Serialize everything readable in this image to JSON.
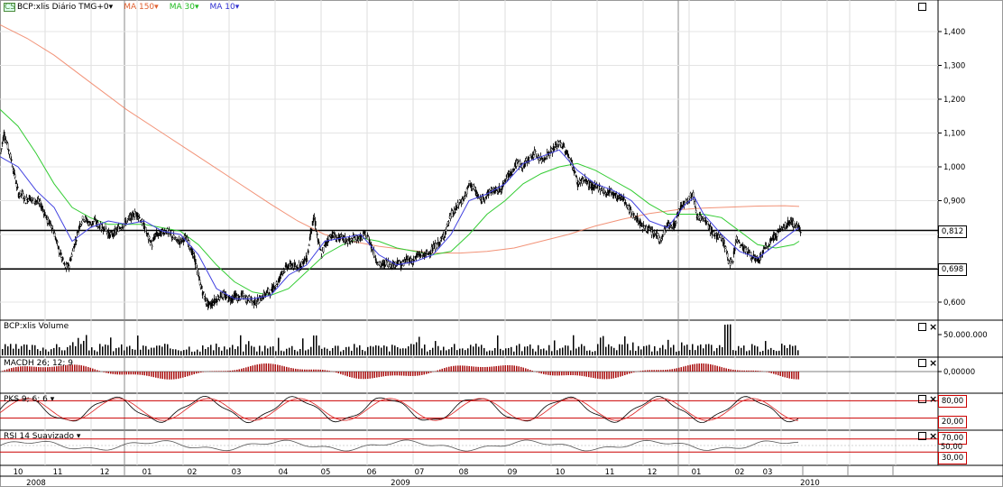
{
  "header": {
    "symbol_label": "BCP:xlis Diário TMG+0",
    "ma150_label": "MA 150",
    "ma30_label": "MA 30",
    "ma10_label": "MA 10",
    "colors": {
      "ma150": "#f08060",
      "ma30": "#33cc33",
      "ma10": "#4040e0",
      "candle": "#000000"
    }
  },
  "panels": {
    "volume_label": "BCP:xlis Volume",
    "macd_label": "MACDH 26; 12; 9",
    "pks_label": "PKS 9; 6; 6",
    "rsi_label": "RSI 14 Suavizado"
  },
  "markers": {
    "upper": "0,812",
    "lower": "0,698",
    "pks_hi": "80,00",
    "pks_lo": "20,00",
    "rsi_hi": "70,00",
    "rsi_mid": "50,00",
    "rsi_lo": "30,00"
  },
  "chart_data": {
    "type": "line",
    "title": "BCP:xlis Diário TMG+0",
    "series": [
      {
        "name": "MA 150",
        "values": []
      },
      {
        "name": "MA 30",
        "values": []
      },
      {
        "name": "MA 10",
        "values": []
      }
    ],
    "price_axis": {
      "ticks": [
        "1,400",
        "1,300",
        "1,200",
        "1,100",
        "1,000",
        "0,900",
        "0,600"
      ],
      "ylim": [
        0.55,
        1.48
      ]
    },
    "horizontal_lines": [
      0.812,
      0.698
    ],
    "volume_axis": {
      "ticks": [
        "50.000.000"
      ]
    },
    "macd_axis": {
      "ticks": [
        "0,00000"
      ]
    },
    "pks_levels": [
      80,
      20
    ],
    "rsi_levels": [
      70,
      50,
      30
    ],
    "x_months": [
      "10",
      "11",
      "12",
      "01",
      "02",
      "03",
      "04",
      "05",
      "06",
      "07",
      "08",
      "09",
      "10",
      "11",
      "12",
      "01",
      "02",
      "03"
    ],
    "x_years": [
      "2008",
      "2009",
      "2010"
    ],
    "price_path": [
      [
        0,
        1.04
      ],
      [
        4,
        1.1
      ],
      [
        8,
        1.06
      ],
      [
        12,
        1.02
      ],
      [
        16,
        0.97
      ],
      [
        20,
        0.92
      ],
      [
        24,
        0.92
      ],
      [
        28,
        0.9
      ],
      [
        32,
        0.91
      ],
      [
        36,
        0.9
      ],
      [
        40,
        0.9
      ],
      [
        44,
        0.89
      ],
      [
        48,
        0.87
      ],
      [
        52,
        0.84
      ],
      [
        56,
        0.83
      ],
      [
        60,
        0.8
      ],
      [
        64,
        0.76
      ],
      [
        68,
        0.73
      ],
      [
        72,
        0.7
      ],
      [
        76,
        0.71
      ],
      [
        80,
        0.75
      ],
      [
        84,
        0.79
      ],
      [
        88,
        0.83
      ],
      [
        92,
        0.85
      ],
      [
        96,
        0.84
      ],
      [
        100,
        0.83
      ],
      [
        104,
        0.84
      ],
      [
        108,
        0.83
      ],
      [
        112,
        0.82
      ],
      [
        116,
        0.82
      ],
      [
        120,
        0.8
      ],
      [
        124,
        0.8
      ],
      [
        128,
        0.81
      ],
      [
        132,
        0.82
      ],
      [
        136,
        0.83
      ],
      [
        140,
        0.84
      ],
      [
        144,
        0.85
      ],
      [
        148,
        0.86
      ],
      [
        152,
        0.86
      ],
      [
        156,
        0.84
      ],
      [
        160,
        0.82
      ],
      [
        164,
        0.79
      ],
      [
        168,
        0.77
      ],
      [
        172,
        0.8
      ],
      [
        176,
        0.8
      ],
      [
        180,
        0.81
      ],
      [
        184,
        0.81
      ],
      [
        188,
        0.8
      ],
      [
        192,
        0.79
      ],
      [
        196,
        0.78
      ],
      [
        200,
        0.78
      ],
      [
        204,
        0.79
      ],
      [
        208,
        0.78
      ],
      [
        212,
        0.75
      ],
      [
        216,
        0.72
      ],
      [
        220,
        0.67
      ],
      [
        224,
        0.63
      ],
      [
        228,
        0.6
      ],
      [
        232,
        0.59
      ],
      [
        236,
        0.6
      ],
      [
        240,
        0.61
      ],
      [
        244,
        0.62
      ],
      [
        248,
        0.62
      ],
      [
        252,
        0.61
      ],
      [
        256,
        0.61
      ],
      [
        260,
        0.62
      ],
      [
        264,
        0.61
      ],
      [
        268,
        0.62
      ],
      [
        272,
        0.61
      ],
      [
        276,
        0.61
      ],
      [
        280,
        0.6
      ],
      [
        284,
        0.6
      ],
      [
        288,
        0.61
      ],
      [
        292,
        0.62
      ],
      [
        296,
        0.63
      ],
      [
        300,
        0.63
      ],
      [
        304,
        0.65
      ],
      [
        308,
        0.66
      ],
      [
        312,
        0.69
      ],
      [
        316,
        0.7
      ],
      [
        320,
        0.71
      ],
      [
        324,
        0.71
      ],
      [
        328,
        0.7
      ],
      [
        332,
        0.71
      ],
      [
        336,
        0.72
      ],
      [
        340,
        0.73
      ],
      [
        344,
        0.81
      ],
      [
        348,
        0.85
      ],
      [
        352,
        0.78
      ],
      [
        356,
        0.74
      ],
      [
        360,
        0.77
      ],
      [
        364,
        0.79
      ],
      [
        368,
        0.8
      ],
      [
        372,
        0.79
      ],
      [
        376,
        0.79
      ],
      [
        380,
        0.79
      ],
      [
        384,
        0.78
      ],
      [
        388,
        0.78
      ],
      [
        392,
        0.79
      ],
      [
        396,
        0.79
      ],
      [
        400,
        0.79
      ],
      [
        404,
        0.8
      ],
      [
        408,
        0.79
      ],
      [
        412,
        0.76
      ],
      [
        416,
        0.73
      ],
      [
        420,
        0.71
      ],
      [
        424,
        0.71
      ],
      [
        428,
        0.72
      ],
      [
        432,
        0.71
      ],
      [
        436,
        0.71
      ],
      [
        440,
        0.72
      ],
      [
        444,
        0.71
      ],
      [
        448,
        0.72
      ],
      [
        452,
        0.73
      ],
      [
        456,
        0.72
      ],
      [
        460,
        0.73
      ],
      [
        464,
        0.74
      ],
      [
        468,
        0.74
      ],
      [
        472,
        0.74
      ],
      [
        476,
        0.75
      ],
      [
        480,
        0.76
      ],
      [
        484,
        0.77
      ],
      [
        488,
        0.78
      ],
      [
        492,
        0.8
      ],
      [
        496,
        0.83
      ],
      [
        500,
        0.86
      ],
      [
        504,
        0.87
      ],
      [
        508,
        0.89
      ],
      [
        512,
        0.9
      ],
      [
        516,
        0.92
      ],
      [
        520,
        0.95
      ],
      [
        524,
        0.94
      ],
      [
        528,
        0.92
      ],
      [
        532,
        0.9
      ],
      [
        536,
        0.91
      ],
      [
        540,
        0.92
      ],
      [
        544,
        0.93
      ],
      [
        548,
        0.93
      ],
      [
        552,
        0.93
      ],
      [
        556,
        0.94
      ],
      [
        560,
        0.96
      ],
      [
        564,
        0.98
      ],
      [
        568,
        0.99
      ],
      [
        572,
        1.01
      ],
      [
        576,
        1.01
      ],
      [
        580,
        1.0
      ],
      [
        584,
        1.02
      ],
      [
        588,
        1.03
      ],
      [
        592,
        1.04
      ],
      [
        596,
        1.03
      ],
      [
        600,
        1.02
      ],
      [
        604,
        1.03
      ],
      [
        608,
        1.04
      ],
      [
        612,
        1.05
      ],
      [
        616,
        1.06
      ],
      [
        620,
        1.07
      ],
      [
        624,
        1.06
      ],
      [
        628,
        1.04
      ],
      [
        632,
        1.02
      ],
      [
        636,
        0.99
      ],
      [
        640,
        0.95
      ],
      [
        644,
        0.96
      ],
      [
        648,
        0.96
      ],
      [
        652,
        0.95
      ],
      [
        656,
        0.94
      ],
      [
        660,
        0.94
      ],
      [
        664,
        0.94
      ],
      [
        668,
        0.93
      ],
      [
        672,
        0.92
      ],
      [
        676,
        0.93
      ],
      [
        680,
        0.92
      ],
      [
        684,
        0.91
      ],
      [
        688,
        0.91
      ],
      [
        692,
        0.9
      ],
      [
        696,
        0.88
      ],
      [
        700,
        0.86
      ],
      [
        704,
        0.85
      ],
      [
        708,
        0.84
      ],
      [
        712,
        0.82
      ],
      [
        716,
        0.82
      ],
      [
        720,
        0.81
      ],
      [
        724,
        0.8
      ],
      [
        728,
        0.8
      ],
      [
        732,
        0.78
      ],
      [
        736,
        0.81
      ],
      [
        740,
        0.83
      ],
      [
        744,
        0.82
      ],
      [
        748,
        0.83
      ],
      [
        752,
        0.87
      ],
      [
        756,
        0.89
      ],
      [
        760,
        0.9
      ],
      [
        764,
        0.91
      ],
      [
        768,
        0.92
      ],
      [
        772,
        0.86
      ],
      [
        776,
        0.85
      ],
      [
        780,
        0.84
      ],
      [
        784,
        0.83
      ],
      [
        788,
        0.81
      ],
      [
        792,
        0.8
      ],
      [
        796,
        0.79
      ],
      [
        800,
        0.79
      ],
      [
        804,
        0.76
      ],
      [
        808,
        0.71
      ],
      [
        812,
        0.73
      ],
      [
        816,
        0.79
      ],
      [
        820,
        0.77
      ],
      [
        824,
        0.76
      ],
      [
        828,
        0.75
      ],
      [
        832,
        0.74
      ],
      [
        836,
        0.73
      ],
      [
        840,
        0.72
      ],
      [
        844,
        0.74
      ],
      [
        848,
        0.76
      ],
      [
        852,
        0.77
      ],
      [
        856,
        0.79
      ],
      [
        860,
        0.8
      ],
      [
        864,
        0.81
      ],
      [
        868,
        0.82
      ],
      [
        872,
        0.83
      ],
      [
        876,
        0.84
      ],
      [
        880,
        0.83
      ],
      [
        884,
        0.82
      ],
      [
        886,
        0.81
      ]
    ],
    "ma150_path": [
      [
        0,
        1.42
      ],
      [
        30,
        1.38
      ],
      [
        60,
        1.33
      ],
      [
        100,
        1.25
      ],
      [
        140,
        1.17
      ],
      [
        180,
        1.1
      ],
      [
        220,
        1.03
      ],
      [
        260,
        0.96
      ],
      [
        300,
        0.89
      ],
      [
        330,
        0.84
      ],
      [
        360,
        0.8
      ],
      [
        390,
        0.78
      ],
      [
        420,
        0.765
      ],
      [
        450,
        0.755
      ],
      [
        480,
        0.745
      ],
      [
        510,
        0.745
      ],
      [
        540,
        0.75
      ],
      [
        570,
        0.76
      ],
      [
        600,
        0.78
      ],
      [
        630,
        0.8
      ],
      [
        660,
        0.825
      ],
      [
        690,
        0.845
      ],
      [
        720,
        0.862
      ],
      [
        750,
        0.873
      ],
      [
        780,
        0.878
      ],
      [
        810,
        0.881
      ],
      [
        840,
        0.884
      ],
      [
        870,
        0.885
      ],
      [
        886,
        0.883
      ]
    ],
    "ma30_path": [
      [
        0,
        1.17
      ],
      [
        20,
        1.12
      ],
      [
        40,
        1.04
      ],
      [
        60,
        0.95
      ],
      [
        80,
        0.88
      ],
      [
        100,
        0.85
      ],
      [
        120,
        0.83
      ],
      [
        140,
        0.83
      ],
      [
        160,
        0.83
      ],
      [
        180,
        0.82
      ],
      [
        200,
        0.81
      ],
      [
        220,
        0.77
      ],
      [
        240,
        0.71
      ],
      [
        260,
        0.66
      ],
      [
        280,
        0.63
      ],
      [
        300,
        0.62
      ],
      [
        320,
        0.64
      ],
      [
        340,
        0.69
      ],
      [
        360,
        0.74
      ],
      [
        380,
        0.77
      ],
      [
        400,
        0.79
      ],
      [
        420,
        0.78
      ],
      [
        440,
        0.76
      ],
      [
        460,
        0.75
      ],
      [
        480,
        0.74
      ],
      [
        500,
        0.75
      ],
      [
        520,
        0.8
      ],
      [
        540,
        0.86
      ],
      [
        560,
        0.9
      ],
      [
        580,
        0.95
      ],
      [
        600,
        0.98
      ],
      [
        620,
        1.0
      ],
      [
        640,
        1.01
      ],
      [
        660,
        0.99
      ],
      [
        680,
        0.96
      ],
      [
        700,
        0.93
      ],
      [
        720,
        0.89
      ],
      [
        740,
        0.86
      ],
      [
        760,
        0.86
      ],
      [
        780,
        0.86
      ],
      [
        800,
        0.85
      ],
      [
        820,
        0.81
      ],
      [
        840,
        0.77
      ],
      [
        860,
        0.76
      ],
      [
        880,
        0.77
      ],
      [
        886,
        0.78
      ]
    ],
    "ma10_path": [
      [
        0,
        1.03
      ],
      [
        20,
        1.0
      ],
      [
        40,
        0.93
      ],
      [
        60,
        0.88
      ],
      [
        80,
        0.78
      ],
      [
        100,
        0.82
      ],
      [
        120,
        0.84
      ],
      [
        140,
        0.83
      ],
      [
        160,
        0.84
      ],
      [
        180,
        0.81
      ],
      [
        200,
        0.8
      ],
      [
        220,
        0.74
      ],
      [
        240,
        0.64
      ],
      [
        260,
        0.61
      ],
      [
        280,
        0.61
      ],
      [
        300,
        0.62
      ],
      [
        320,
        0.68
      ],
      [
        340,
        0.71
      ],
      [
        360,
        0.78
      ],
      [
        380,
        0.79
      ],
      [
        400,
        0.8
      ],
      [
        420,
        0.74
      ],
      [
        440,
        0.71
      ],
      [
        460,
        0.72
      ],
      [
        480,
        0.74
      ],
      [
        500,
        0.8
      ],
      [
        520,
        0.9
      ],
      [
        540,
        0.92
      ],
      [
        560,
        0.95
      ],
      [
        580,
        1.01
      ],
      [
        600,
        1.03
      ],
      [
        620,
        1.05
      ],
      [
        640,
        0.99
      ],
      [
        660,
        0.95
      ],
      [
        680,
        0.93
      ],
      [
        700,
        0.9
      ],
      [
        720,
        0.84
      ],
      [
        740,
        0.82
      ],
      [
        760,
        0.89
      ],
      [
        770,
        0.91
      ],
      [
        780,
        0.86
      ],
      [
        800,
        0.8
      ],
      [
        820,
        0.75
      ],
      [
        840,
        0.73
      ],
      [
        860,
        0.77
      ],
      [
        880,
        0.81
      ],
      [
        886,
        0.82
      ]
    ]
  }
}
